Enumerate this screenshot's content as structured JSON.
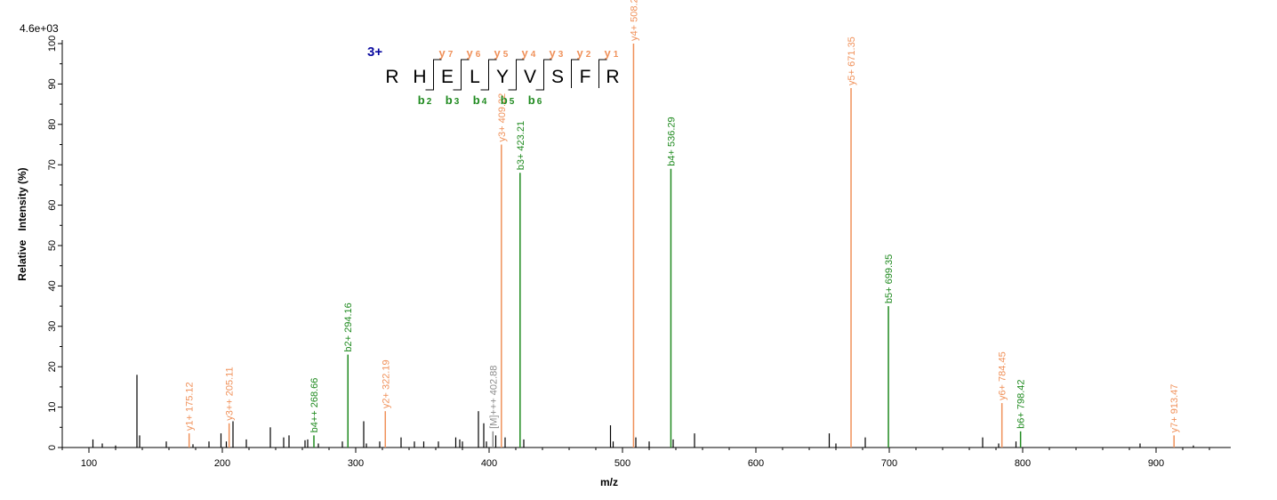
{
  "chart_data": {
    "type": "bar",
    "max_intensity_label": "4.6e+03",
    "xlabel": "m/z",
    "ylabel": "Relative   Intensity (%)",
    "xlim": [
      80,
      955
    ],
    "ylim": [
      0,
      100
    ],
    "x_ticks": [
      100,
      200,
      300,
      400,
      500,
      600,
      700,
      800,
      900
    ],
    "y_ticks": [
      0,
      10,
      20,
      30,
      40,
      50,
      60,
      70,
      80,
      90,
      100
    ],
    "charge_label": "3+",
    "sequence": [
      "R",
      "H",
      "E",
      "L",
      "Y",
      "V",
      "S",
      "F",
      "R"
    ],
    "b_ions": [
      {
        "label": "b",
        "sub": "2",
        "after": 2
      },
      {
        "label": "b",
        "sub": "3",
        "after": 3
      },
      {
        "label": "b",
        "sub": "4",
        "after": 4
      },
      {
        "label": "b",
        "sub": "5",
        "after": 5
      },
      {
        "label": "b",
        "sub": "6",
        "after": 6
      }
    ],
    "y_ions": [
      {
        "label": "y",
        "sub": "7",
        "after": 2
      },
      {
        "label": "y",
        "sub": "6",
        "after": 3
      },
      {
        "label": "y",
        "sub": "5",
        "after": 4
      },
      {
        "label": "y",
        "sub": "4",
        "after": 5
      },
      {
        "label": "y",
        "sub": "3",
        "after": 6
      },
      {
        "label": "y",
        "sub": "2",
        "after": 7
      },
      {
        "label": "y",
        "sub": "1",
        "after": 8
      }
    ],
    "colors": {
      "y": "#f0915a",
      "b": "#1f8a1f",
      "precursor": "#8c8c8c",
      "other": "#000000",
      "charge": "#0a0aa0"
    },
    "labeled_peaks": [
      {
        "mz": 175.12,
        "intensity": 3.5,
        "label": "y1+ 175.12",
        "ion": "y"
      },
      {
        "mz": 205.11,
        "intensity": 6,
        "label": "y3++ 205.11",
        "ion": "y"
      },
      {
        "mz": 268.66,
        "intensity": 3,
        "label": "b4++ 268.66",
        "ion": "b"
      },
      {
        "mz": 294.16,
        "intensity": 23,
        "label": "b2+ 294.16",
        "ion": "b"
      },
      {
        "mz": 322.19,
        "intensity": 9,
        "label": "y2+ 322.19",
        "ion": "y"
      },
      {
        "mz": 402.88,
        "intensity": 4,
        "label": "[M]+++ 402.88",
        "ion": "precursor"
      },
      {
        "mz": 409.22,
        "intensity": 75,
        "label": "y3+ 409.22",
        "ion": "y"
      },
      {
        "mz": 423.21,
        "intensity": 68,
        "label": "b3+ 423.21",
        "ion": "b"
      },
      {
        "mz": 508.29,
        "intensity": 100,
        "label": "y4+ 508.29",
        "ion": "y"
      },
      {
        "mz": 536.29,
        "intensity": 69,
        "label": "b4+ 536.29",
        "ion": "b"
      },
      {
        "mz": 671.35,
        "intensity": 89,
        "label": "y5+ 671.35",
        "ion": "y"
      },
      {
        "mz": 699.35,
        "intensity": 35,
        "label": "b5+ 699.35",
        "ion": "b"
      },
      {
        "mz": 784.45,
        "intensity": 11,
        "label": "y6+ 784.45",
        "ion": "y"
      },
      {
        "mz": 798.42,
        "intensity": 4,
        "label": "b6+ 798.42",
        "ion": "b"
      },
      {
        "mz": 913.47,
        "intensity": 3,
        "label": "y7+ 913.47",
        "ion": "y"
      }
    ],
    "unlabeled_peaks": [
      {
        "mz": 103,
        "intensity": 2
      },
      {
        "mz": 110,
        "intensity": 1
      },
      {
        "mz": 120,
        "intensity": 0.5
      },
      {
        "mz": 136,
        "intensity": 18
      },
      {
        "mz": 138,
        "intensity": 3
      },
      {
        "mz": 158,
        "intensity": 1.5
      },
      {
        "mz": 178,
        "intensity": 0.8
      },
      {
        "mz": 190,
        "intensity": 1.5
      },
      {
        "mz": 199,
        "intensity": 3.5
      },
      {
        "mz": 203,
        "intensity": 1.5
      },
      {
        "mz": 208,
        "intensity": 6.5
      },
      {
        "mz": 218,
        "intensity": 2
      },
      {
        "mz": 236,
        "intensity": 5
      },
      {
        "mz": 246,
        "intensity": 2.5
      },
      {
        "mz": 250,
        "intensity": 3
      },
      {
        "mz": 262,
        "intensity": 1.8
      },
      {
        "mz": 264,
        "intensity": 2
      },
      {
        "mz": 272,
        "intensity": 1
      },
      {
        "mz": 290,
        "intensity": 1.5
      },
      {
        "mz": 306,
        "intensity": 6.5
      },
      {
        "mz": 308,
        "intensity": 1
      },
      {
        "mz": 318,
        "intensity": 1.5
      },
      {
        "mz": 334,
        "intensity": 2.5
      },
      {
        "mz": 344,
        "intensity": 1.5
      },
      {
        "mz": 351,
        "intensity": 1.5
      },
      {
        "mz": 362,
        "intensity": 1.5
      },
      {
        "mz": 375,
        "intensity": 2.5
      },
      {
        "mz": 378,
        "intensity": 2
      },
      {
        "mz": 380,
        "intensity": 1.5
      },
      {
        "mz": 392,
        "intensity": 9
      },
      {
        "mz": 396,
        "intensity": 6
      },
      {
        "mz": 398,
        "intensity": 1.5
      },
      {
        "mz": 405,
        "intensity": 3
      },
      {
        "mz": 412,
        "intensity": 2.5
      },
      {
        "mz": 426,
        "intensity": 2
      },
      {
        "mz": 491,
        "intensity": 5.5
      },
      {
        "mz": 493,
        "intensity": 1.5
      },
      {
        "mz": 510,
        "intensity": 2.5
      },
      {
        "mz": 520,
        "intensity": 1.5
      },
      {
        "mz": 538,
        "intensity": 2
      },
      {
        "mz": 554,
        "intensity": 3.5
      },
      {
        "mz": 655,
        "intensity": 3.5
      },
      {
        "mz": 660,
        "intensity": 1
      },
      {
        "mz": 682,
        "intensity": 2.5
      },
      {
        "mz": 770,
        "intensity": 2.5
      },
      {
        "mz": 782,
        "intensity": 1
      },
      {
        "mz": 795,
        "intensity": 1.5
      },
      {
        "mz": 888,
        "intensity": 1
      },
      {
        "mz": 928,
        "intensity": 0.5
      }
    ]
  }
}
